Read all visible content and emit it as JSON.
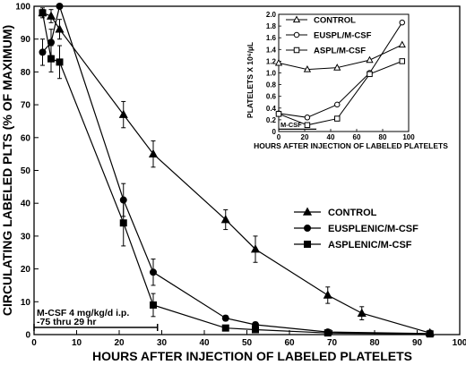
{
  "chart_data": [
    {
      "type": "line",
      "xlabel": "HOURS AFTER INJECTION OF LABELED PLATELETS",
      "ylabel": "CIRCULATING LABELED PLTS (% OF MAXIMUM)",
      "xlim": [
        0,
        100
      ],
      "ylim": [
        0,
        100
      ],
      "xticks": [
        0,
        10,
        20,
        30,
        40,
        50,
        60,
        70,
        80,
        90,
        100
      ],
      "yticks": [
        0,
        10,
        20,
        30,
        40,
        50,
        60,
        70,
        80,
        90,
        100
      ],
      "legend_position": "middle-right",
      "series": [
        {
          "name": "CONTROL",
          "marker": "triangle",
          "points": [
            {
              "x": 2,
              "y": 98,
              "err": 1
            },
            {
              "x": 4,
              "y": 97,
              "err": 2
            },
            {
              "x": 6,
              "y": 93,
              "err": 3
            },
            {
              "x": 21,
              "y": 67,
              "err": 4
            },
            {
              "x": 28,
              "y": 55,
              "err": 4
            },
            {
              "x": 45,
              "y": 35,
              "err": 3
            },
            {
              "x": 52,
              "y": 26,
              "err": 4
            },
            {
              "x": 69,
              "y": 12,
              "err": 2.5
            },
            {
              "x": 77,
              "y": 6.5,
              "err": 2
            },
            {
              "x": 93,
              "y": 0.5,
              "err": 0.8
            }
          ]
        },
        {
          "name": "EUSPLENIC/M-CSF",
          "marker": "circle",
          "points": [
            {
              "x": 2,
              "y": 86,
              "err": 4
            },
            {
              "x": 4,
              "y": 89,
              "err": 4
            },
            {
              "x": 6,
              "y": 100,
              "err": 0
            },
            {
              "x": 21,
              "y": 41,
              "err": 5
            },
            {
              "x": 28,
              "y": 19,
              "err": 4
            },
            {
              "x": 45,
              "y": 5,
              "err": 0.8
            },
            {
              "x": 52,
              "y": 3,
              "err": 0.8
            },
            {
              "x": 69,
              "y": 0.8,
              "err": 0.5
            },
            {
              "x": 93,
              "y": 0.3,
              "err": 0.3
            }
          ]
        },
        {
          "name": "ASPLENIC/M-CSF",
          "marker": "square",
          "points": [
            {
              "x": 2,
              "y": 98,
              "err": 1.5
            },
            {
              "x": 4,
              "y": 84,
              "err": 4
            },
            {
              "x": 6,
              "y": 83,
              "err": 5
            },
            {
              "x": 21,
              "y": 34,
              "err": 7
            },
            {
              "x": 28,
              "y": 9,
              "err": 3.5
            },
            {
              "x": 45,
              "y": 2,
              "err": 0.5
            },
            {
              "x": 52,
              "y": 1.5,
              "err": 0.5
            },
            {
              "x": 69,
              "y": 0.5,
              "err": 0.3
            },
            {
              "x": 93,
              "y": 0.2,
              "err": 0.2
            }
          ]
        }
      ],
      "annotation": {
        "text_line1": "M-CSF 4 mg/kg/d i.p.",
        "text_line2": "-75 thru 29 hr",
        "bar_x": [
          0,
          29
        ]
      }
    },
    {
      "type": "line",
      "xlabel": "HOURS AFTER INJECTION OF LABELED PLATELETS",
      "ylabel": "PLATELETS X 10⁶/µL",
      "xlim": [
        0,
        100
      ],
      "ylim": [
        0,
        2.0
      ],
      "xticks": [
        0,
        20,
        40,
        60,
        80,
        100
      ],
      "yticks": [
        0,
        0.2,
        0.4,
        0.6,
        0.8,
        1.0,
        1.2,
        1.4,
        1.6,
        1.8,
        2.0
      ],
      "ytick_labels": [
        "0",
        "0.2",
        "0.4",
        "0.6",
        "0.8",
        "1.0",
        "1.2",
        "1.4",
        "1.6",
        "1.8",
        "2.0"
      ],
      "legend_position": "top",
      "series": [
        {
          "name": "CONTROL",
          "marker": "triangle",
          "x": [
            0,
            22,
            45,
            70,
            95
          ],
          "y": [
            1.17,
            1.06,
            1.09,
            1.22,
            1.48
          ]
        },
        {
          "name": "EUSPL/M-CSF",
          "marker": "circle",
          "x": [
            0,
            22,
            45,
            70,
            95
          ],
          "y": [
            0.31,
            0.24,
            0.46,
            1.0,
            1.86
          ]
        },
        {
          "name": "ASPL/M-CSF",
          "marker": "square",
          "x": [
            0,
            22,
            45,
            70,
            95
          ],
          "y": [
            0.3,
            0.11,
            0.22,
            0.98,
            1.2
          ]
        }
      ],
      "annotation": {
        "text": "M-CSF",
        "bar_x": [
          0,
          29
        ]
      }
    }
  ]
}
